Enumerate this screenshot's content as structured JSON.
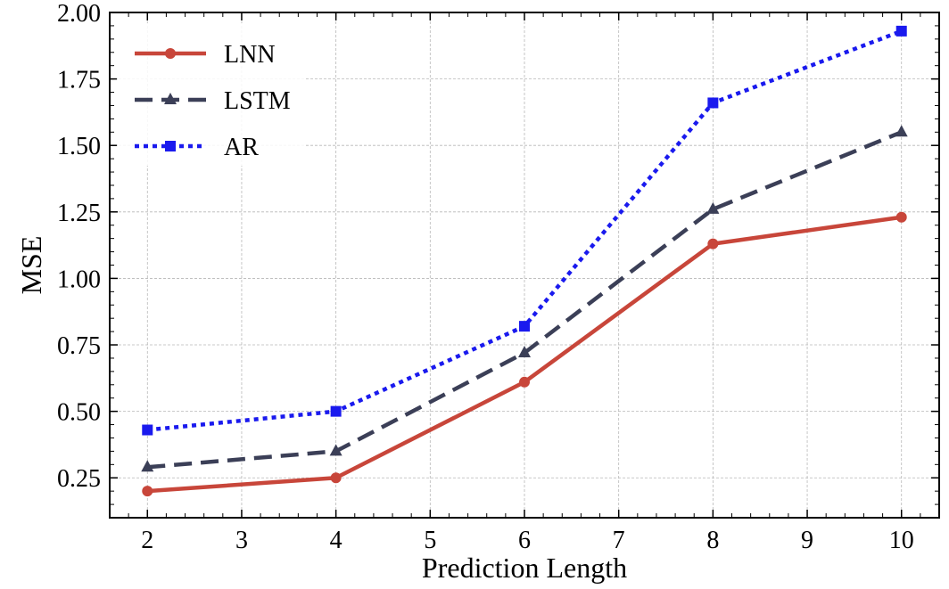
{
  "chart_data": {
    "type": "line",
    "title": "",
    "xlabel": "Prediction Length",
    "ylabel": "MSE",
    "xlim": [
      1.6,
      10.4
    ],
    "ylim": [
      0.1,
      2.0
    ],
    "xticks": [
      2,
      3,
      4,
      5,
      6,
      7,
      8,
      9,
      10
    ],
    "yticks": [
      0.25,
      0.5,
      0.75,
      1.0,
      1.25,
      1.5,
      1.75,
      2.0
    ],
    "ytick_labels": [
      "0.25",
      "0.50",
      "0.75",
      "1.00",
      "1.25",
      "1.50",
      "1.75",
      "2.00"
    ],
    "grid": true,
    "legend": "top-left",
    "x": [
      2,
      4,
      6,
      8,
      10
    ],
    "series": [
      {
        "name": "LNN",
        "values": [
          0.2,
          0.25,
          0.61,
          1.13,
          1.23
        ],
        "color": "#c8463a",
        "linestyle": "solid",
        "marker": "circle"
      },
      {
        "name": "LSTM",
        "values": [
          0.29,
          0.35,
          0.72,
          1.26,
          1.55
        ],
        "color": "#3b3f57",
        "linestyle": "dashed",
        "marker": "triangle"
      },
      {
        "name": "AR",
        "values": [
          0.43,
          0.5,
          0.82,
          1.66,
          1.93
        ],
        "color": "#1a1aee",
        "linestyle": "dotted",
        "marker": "square"
      }
    ]
  }
}
